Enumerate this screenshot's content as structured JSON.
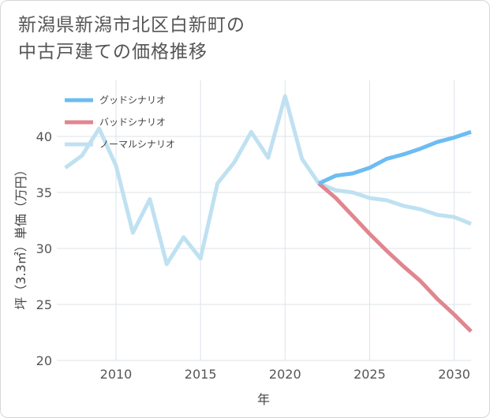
{
  "title_lines": [
    "新潟県新潟市北区白新町の",
    "中古戸建ての価格推移"
  ],
  "chart_data": {
    "type": "line",
    "title": "新潟県新潟市北区白新町の中古戸建ての価格推移",
    "xlabel": "年",
    "ylabel": "坪（3.3㎡）単価（万円）",
    "xlim": [
      2006.5,
      2031
    ],
    "ylim": [
      20,
      45
    ],
    "xticks": [
      2010,
      2015,
      2020,
      2025,
      2030
    ],
    "yticks": [
      20,
      25,
      30,
      35,
      40
    ],
    "grid": true,
    "legend_position": "top-left",
    "series": [
      {
        "name": "グッドシナリオ",
        "color": "#6dbcf3",
        "x": [
          2022,
          2023,
          2024,
          2025,
          2026,
          2027,
          2028,
          2029,
          2030,
          2031
        ],
        "y": [
          35.8,
          36.5,
          36.7,
          37.2,
          38.0,
          38.4,
          38.9,
          39.5,
          39.9,
          40.4
        ]
      },
      {
        "name": "バッドシナリオ",
        "color": "#e0868f",
        "x": [
          2022,
          2023,
          2024,
          2025,
          2026,
          2027,
          2028,
          2029,
          2030,
          2031
        ],
        "y": [
          35.8,
          34.5,
          32.9,
          31.3,
          29.8,
          28.4,
          27.1,
          25.5,
          24.1,
          22.6
        ]
      },
      {
        "name": "ノーマルシナリオ",
        "color": "#bfe1f1",
        "x": [
          2007,
          2008,
          2009,
          2010,
          2011,
          2012,
          2013,
          2014,
          2015,
          2016,
          2017,
          2018,
          2019,
          2020,
          2021,
          2022,
          2023,
          2024,
          2025,
          2026,
          2027,
          2028,
          2029,
          2030,
          2031
        ],
        "y": [
          37.2,
          38.3,
          40.7,
          37.4,
          31.4,
          34.4,
          28.6,
          31.0,
          29.1,
          35.8,
          37.7,
          40.4,
          38.1,
          43.6,
          38.0,
          35.8,
          35.2,
          35.0,
          34.5,
          34.3,
          33.8,
          33.5,
          33.0,
          32.8,
          32.2
        ]
      }
    ]
  }
}
